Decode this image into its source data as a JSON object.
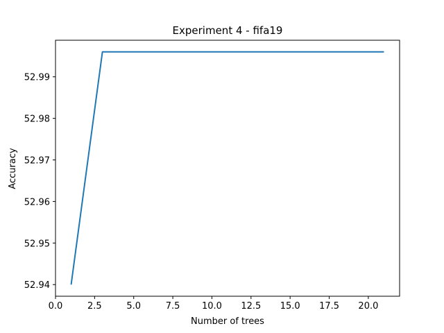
{
  "chart_data": {
    "type": "line",
    "title": "Experiment 4 - fifa19",
    "xlabel": "Number of trees",
    "ylabel": "Accuracy",
    "x": [
      1,
      3,
      5,
      7,
      9,
      11,
      13,
      15,
      17,
      19,
      21
    ],
    "series": [
      {
        "name": "Accuracy",
        "color": "#1f77b4",
        "values": [
          52.94,
          52.996,
          52.996,
          52.996,
          52.996,
          52.996,
          52.996,
          52.996,
          52.996,
          52.996,
          52.996
        ]
      }
    ],
    "xlim": [
      0,
      22
    ],
    "ylim": [
      52.9372,
      52.9988
    ],
    "xticks": [
      0.0,
      2.5,
      5.0,
      7.5,
      10.0,
      12.5,
      15.0,
      17.5,
      20.0
    ],
    "xtick_labels": [
      "0.0",
      "2.5",
      "5.0",
      "7.5",
      "10.0",
      "12.5",
      "15.0",
      "17.5",
      "20.0"
    ],
    "yticks": [
      52.94,
      52.95,
      52.96,
      52.97,
      52.98,
      52.99
    ],
    "ytick_labels": [
      "52.94",
      "52.95",
      "52.96",
      "52.97",
      "52.98",
      "52.99"
    ],
    "grid": false,
    "legend": "none"
  }
}
